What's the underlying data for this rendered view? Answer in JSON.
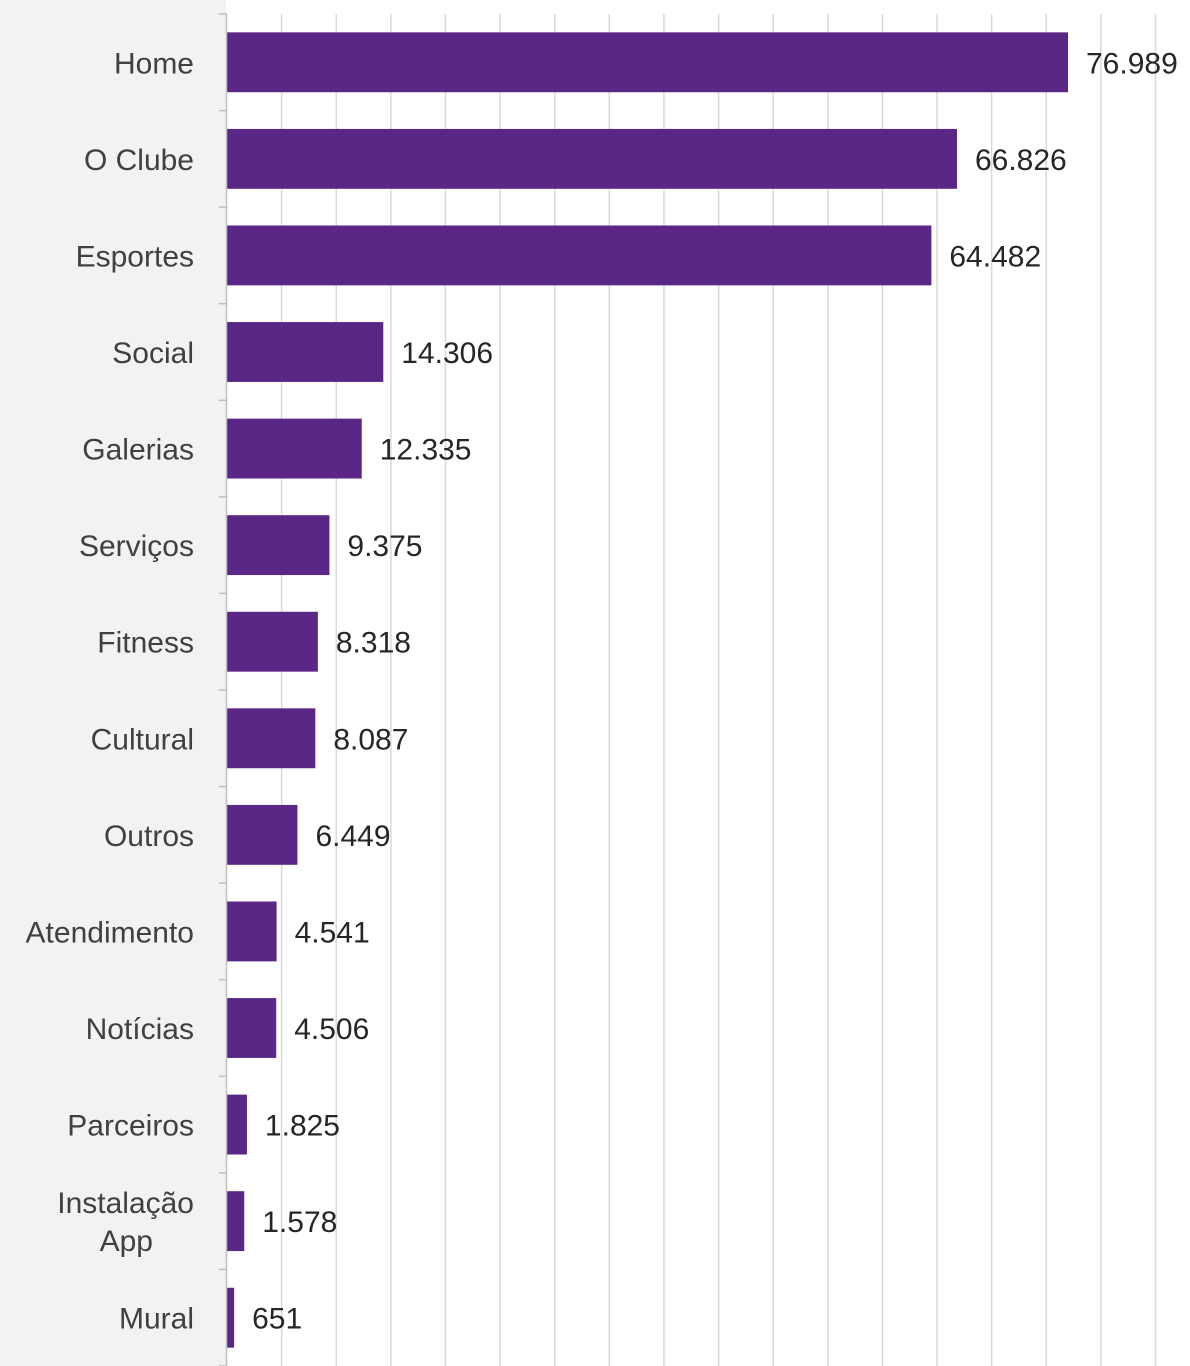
{
  "chart_data": {
    "type": "bar",
    "orientation": "horizontal",
    "categories": [
      "Home",
      "O Clube",
      "Esportes",
      "Social",
      "Galerias",
      "Serviços",
      "Fitness",
      "Cultural",
      "Outros",
      "Atendimento",
      "Notícias",
      "Parceiros",
      "Instalação App",
      "Mural"
    ],
    "category_lines": [
      [
        "Home"
      ],
      [
        "O Clube"
      ],
      [
        "Esportes"
      ],
      [
        "Social"
      ],
      [
        "Galerias"
      ],
      [
        "Serviços"
      ],
      [
        "Fitness"
      ],
      [
        "Cultural"
      ],
      [
        "Outros"
      ],
      [
        "Atendimento"
      ],
      [
        "Notícias"
      ],
      [
        "Parceiros"
      ],
      [
        "Instalação",
        "App"
      ],
      [
        "Mural"
      ]
    ],
    "values": [
      76989,
      66826,
      64482,
      14306,
      12335,
      9375,
      8318,
      8087,
      6449,
      4541,
      4506,
      1825,
      1578,
      651
    ],
    "value_labels": [
      "76.989",
      "66.826",
      "64.482",
      "14.306",
      "12.335",
      "9.375",
      "8.318",
      "8.087",
      "6.449",
      "4.541",
      "4.506",
      "1.825",
      "1.578",
      "651"
    ],
    "xlim": [
      0,
      85000
    ],
    "grid": true,
    "legend": "none",
    "title": "",
    "xlabel": "",
    "ylabel": "",
    "colors": {
      "bar": "#5b2787",
      "label_panel": "#f2f2f2",
      "gridline": "#d9d9d9",
      "axis": "#bfbfbf",
      "category_text": "#404040",
      "value_text": "#262626"
    }
  }
}
